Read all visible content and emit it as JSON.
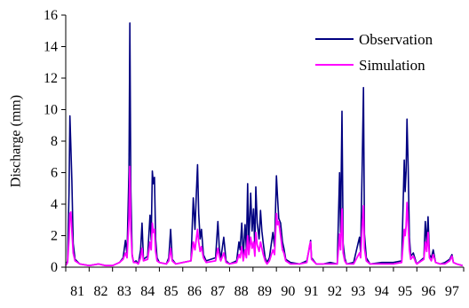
{
  "chart_data": {
    "type": "line",
    "title": "",
    "xlabel": "",
    "ylabel": "Discharge (mm)",
    "ylim": [
      0,
      16
    ],
    "xlim": [
      81,
      98
    ],
    "yticks": [
      "0",
      "2",
      "4",
      "6",
      "8",
      "10",
      "12",
      "14",
      "16"
    ],
    "xticks": [
      "81",
      "82",
      "83",
      "84",
      "85",
      "86",
      "87",
      "88",
      "89",
      "90",
      "91",
      "92",
      "93",
      "94",
      "95",
      "96",
      "97"
    ],
    "grid": false,
    "legend_position": "top-right",
    "series": [
      {
        "name": "Observation",
        "color": "#000080",
        "points": [
          [
            81.0,
            0.1
          ],
          [
            81.08,
            0.4
          ],
          [
            81.14,
            4.7
          ],
          [
            81.18,
            9.6
          ],
          [
            81.22,
            7.6
          ],
          [
            81.26,
            5.5
          ],
          [
            81.32,
            1.5
          ],
          [
            81.4,
            0.5
          ],
          [
            81.6,
            0.2
          ],
          [
            82.0,
            0.1
          ],
          [
            82.4,
            0.2
          ],
          [
            82.7,
            0.1
          ],
          [
            83.0,
            0.1
          ],
          [
            83.3,
            0.3
          ],
          [
            83.45,
            0.6
          ],
          [
            83.55,
            1.7
          ],
          [
            83.62,
            0.8
          ],
          [
            83.7,
            6.1
          ],
          [
            83.74,
            15.5
          ],
          [
            83.78,
            4.9
          ],
          [
            83.84,
            0.8
          ],
          [
            83.9,
            0.3
          ],
          [
            84.0,
            0.4
          ],
          [
            84.1,
            0.2
          ],
          [
            84.2,
            1.1
          ],
          [
            84.26,
            2.8
          ],
          [
            84.32,
            0.5
          ],
          [
            84.5,
            0.7
          ],
          [
            84.6,
            3.3
          ],
          [
            84.65,
            1.7
          ],
          [
            84.7,
            6.1
          ],
          [
            84.74,
            5.3
          ],
          [
            84.79,
            5.7
          ],
          [
            84.84,
            1.8
          ],
          [
            84.9,
            0.6
          ],
          [
            85.0,
            0.3
          ],
          [
            85.3,
            0.2
          ],
          [
            85.4,
            0.6
          ],
          [
            85.48,
            2.4
          ],
          [
            85.55,
            0.5
          ],
          [
            85.7,
            0.2
          ],
          [
            86.0,
            0.3
          ],
          [
            86.35,
            0.4
          ],
          [
            86.45,
            4.4
          ],
          [
            86.52,
            2.4
          ],
          [
            86.58,
            4.6
          ],
          [
            86.63,
            6.5
          ],
          [
            86.68,
            3.4
          ],
          [
            86.74,
            1.8
          ],
          [
            86.8,
            2.4
          ],
          [
            86.88,
            0.8
          ],
          [
            87.0,
            0.4
          ],
          [
            87.4,
            0.6
          ],
          [
            87.5,
            2.9
          ],
          [
            87.56,
            1.2
          ],
          [
            87.62,
            0.5
          ],
          [
            87.75,
            1.9
          ],
          [
            87.85,
            0.4
          ],
          [
            88.0,
            0.2
          ],
          [
            88.3,
            0.4
          ],
          [
            88.4,
            1.6
          ],
          [
            88.45,
            1.1
          ],
          [
            88.52,
            2.8
          ],
          [
            88.58,
            0.6
          ],
          [
            88.66,
            2.7
          ],
          [
            88.72,
            1.1
          ],
          [
            88.77,
            5.3
          ],
          [
            88.82,
            1.4
          ],
          [
            88.9,
            4.7
          ],
          [
            88.96,
            2.3
          ],
          [
            89.02,
            3.7
          ],
          [
            89.08,
            1.2
          ],
          [
            89.12,
            5.1
          ],
          [
            89.18,
            2.8
          ],
          [
            89.26,
            1.8
          ],
          [
            89.32,
            3.6
          ],
          [
            89.38,
            2.3
          ],
          [
            89.44,
            1.5
          ],
          [
            89.52,
            0.6
          ],
          [
            89.6,
            0.3
          ],
          [
            89.7,
            0.6
          ],
          [
            89.85,
            2.2
          ],
          [
            89.92,
            1.3
          ],
          [
            90.0,
            5.8
          ],
          [
            90.05,
            4.4
          ],
          [
            90.1,
            3.1
          ],
          [
            90.18,
            2.8
          ],
          [
            90.26,
            1.6
          ],
          [
            90.32,
            1.2
          ],
          [
            90.4,
            0.5
          ],
          [
            90.6,
            0.3
          ],
          [
            91.0,
            0.2
          ],
          [
            91.3,
            0.4
          ],
          [
            91.42,
            1.3
          ],
          [
            91.46,
            1.7
          ],
          [
            91.5,
            0.6
          ],
          [
            91.7,
            0.2
          ],
          [
            92.0,
            0.2
          ],
          [
            92.3,
            0.3
          ],
          [
            92.6,
            0.2
          ],
          [
            92.7,
            6.0
          ],
          [
            92.74,
            2.2
          ],
          [
            92.8,
            9.9
          ],
          [
            92.85,
            1.5
          ],
          [
            92.92,
            0.6
          ],
          [
            93.0,
            0.2
          ],
          [
            93.3,
            0.3
          ],
          [
            93.55,
            1.9
          ],
          [
            93.6,
            0.9
          ],
          [
            93.67,
            6.9
          ],
          [
            93.72,
            11.4
          ],
          [
            93.76,
            2.1
          ],
          [
            93.84,
            0.6
          ],
          [
            94.0,
            0.2
          ],
          [
            94.5,
            0.3
          ],
          [
            95.0,
            0.3
          ],
          [
            95.35,
            0.4
          ],
          [
            95.46,
            6.8
          ],
          [
            95.5,
            4.8
          ],
          [
            95.54,
            6.1
          ],
          [
            95.58,
            9.4
          ],
          [
            95.63,
            6.4
          ],
          [
            95.68,
            1.9
          ],
          [
            95.74,
            0.7
          ],
          [
            95.85,
            0.9
          ],
          [
            95.95,
            0.4
          ],
          [
            96.0,
            0.2
          ],
          [
            96.3,
            0.6
          ],
          [
            96.36,
            2.9
          ],
          [
            96.42,
            1.5
          ],
          [
            96.48,
            3.2
          ],
          [
            96.54,
            0.8
          ],
          [
            96.62,
            0.6
          ],
          [
            96.7,
            1.1
          ],
          [
            96.8,
            0.3
          ],
          [
            97.0,
            0.2
          ],
          [
            97.2,
            0.3
          ],
          [
            97.4,
            0.5
          ],
          [
            97.5,
            0.8
          ],
          [
            97.56,
            0.3
          ],
          [
            97.7,
            0.2
          ],
          [
            97.95,
            0.1
          ]
        ]
      },
      {
        "name": "Simulation",
        "color": "#ff00ff",
        "points": [
          [
            81.0,
            0.1
          ],
          [
            81.08,
            0.3
          ],
          [
            81.14,
            1.8
          ],
          [
            81.18,
            3.4
          ],
          [
            81.22,
            3.5
          ],
          [
            81.26,
            2.3
          ],
          [
            81.32,
            0.9
          ],
          [
            81.4,
            0.4
          ],
          [
            81.6,
            0.2
          ],
          [
            82.0,
            0.1
          ],
          [
            82.4,
            0.2
          ],
          [
            82.7,
            0.1
          ],
          [
            83.0,
            0.1
          ],
          [
            83.3,
            0.3
          ],
          [
            83.45,
            0.5
          ],
          [
            83.55,
            0.9
          ],
          [
            83.62,
            0.6
          ],
          [
            83.7,
            3.1
          ],
          [
            83.74,
            6.4
          ],
          [
            83.78,
            2.4
          ],
          [
            83.84,
            0.7
          ],
          [
            83.9,
            0.3
          ],
          [
            84.0,
            0.3
          ],
          [
            84.1,
            0.2
          ],
          [
            84.2,
            0.6
          ],
          [
            84.26,
            1.2
          ],
          [
            84.32,
            0.4
          ],
          [
            84.5,
            0.5
          ],
          [
            84.6,
            1.6
          ],
          [
            84.65,
            1.1
          ],
          [
            84.7,
            2.8
          ],
          [
            84.74,
            2.2
          ],
          [
            84.79,
            2.4
          ],
          [
            84.84,
            1.0
          ],
          [
            84.9,
            0.4
          ],
          [
            85.0,
            0.3
          ],
          [
            85.3,
            0.2
          ],
          [
            85.4,
            0.4
          ],
          [
            85.48,
            1.2
          ],
          [
            85.55,
            0.4
          ],
          [
            85.7,
            0.2
          ],
          [
            86.0,
            0.3
          ],
          [
            86.35,
            0.4
          ],
          [
            86.45,
            1.6
          ],
          [
            86.52,
            1.1
          ],
          [
            86.58,
            1.8
          ],
          [
            86.63,
            2.4
          ],
          [
            86.68,
            1.6
          ],
          [
            86.74,
            1.0
          ],
          [
            86.8,
            1.3
          ],
          [
            86.88,
            0.6
          ],
          [
            87.0,
            0.3
          ],
          [
            87.4,
            0.4
          ],
          [
            87.5,
            1.2
          ],
          [
            87.56,
            0.7
          ],
          [
            87.62,
            0.4
          ],
          [
            87.75,
            0.9
          ],
          [
            87.85,
            0.3
          ],
          [
            88.0,
            0.2
          ],
          [
            88.3,
            0.3
          ],
          [
            88.4,
            0.8
          ],
          [
            88.45,
            0.6
          ],
          [
            88.52,
            1.3
          ],
          [
            88.58,
            0.4
          ],
          [
            88.66,
            1.1
          ],
          [
            88.72,
            0.6
          ],
          [
            88.77,
            2.0
          ],
          [
            88.82,
            0.8
          ],
          [
            88.9,
            1.9
          ],
          [
            88.96,
            1.2
          ],
          [
            89.02,
            1.6
          ],
          [
            89.08,
            0.7
          ],
          [
            89.12,
            2.2
          ],
          [
            89.18,
            1.4
          ],
          [
            89.26,
            1.0
          ],
          [
            89.32,
            1.6
          ],
          [
            89.38,
            1.2
          ],
          [
            89.44,
            0.8
          ],
          [
            89.52,
            0.4
          ],
          [
            89.6,
            0.2
          ],
          [
            89.7,
            0.4
          ],
          [
            89.85,
            1.1
          ],
          [
            89.92,
            0.8
          ],
          [
            90.0,
            3.4
          ],
          [
            90.05,
            2.7
          ],
          [
            90.1,
            2.9
          ],
          [
            90.18,
            2.0
          ],
          [
            90.26,
            1.1
          ],
          [
            90.32,
            0.9
          ],
          [
            90.4,
            0.4
          ],
          [
            90.6,
            0.2
          ],
          [
            91.0,
            0.2
          ],
          [
            91.3,
            0.3
          ],
          [
            91.42,
            1.4
          ],
          [
            91.46,
            1.6
          ],
          [
            91.5,
            0.5
          ],
          [
            91.7,
            0.2
          ],
          [
            92.0,
            0.2
          ],
          [
            92.3,
            0.2
          ],
          [
            92.6,
            0.2
          ],
          [
            92.7,
            2.1
          ],
          [
            92.74,
            1.1
          ],
          [
            92.8,
            3.7
          ],
          [
            92.85,
            0.9
          ],
          [
            92.92,
            0.4
          ],
          [
            93.0,
            0.2
          ],
          [
            93.3,
            0.2
          ],
          [
            93.55,
            0.9
          ],
          [
            93.6,
            0.6
          ],
          [
            93.67,
            2.7
          ],
          [
            93.72,
            3.9
          ],
          [
            93.76,
            1.2
          ],
          [
            93.84,
            0.4
          ],
          [
            94.0,
            0.2
          ],
          [
            94.5,
            0.2
          ],
          [
            95.0,
            0.2
          ],
          [
            95.35,
            0.3
          ],
          [
            95.46,
            2.4
          ],
          [
            95.5,
            2.0
          ],
          [
            95.54,
            2.6
          ],
          [
            95.58,
            4.1
          ],
          [
            95.63,
            2.8
          ],
          [
            95.68,
            1.1
          ],
          [
            95.74,
            0.5
          ],
          [
            95.85,
            0.7
          ],
          [
            95.95,
            0.3
          ],
          [
            96.0,
            0.2
          ],
          [
            96.3,
            0.5
          ],
          [
            96.36,
            1.6
          ],
          [
            96.42,
            1.0
          ],
          [
            96.48,
            2.2
          ],
          [
            96.54,
            0.6
          ],
          [
            96.62,
            0.4
          ],
          [
            96.7,
            0.8
          ],
          [
            96.8,
            0.3
          ],
          [
            97.0,
            0.2
          ],
          [
            97.2,
            0.2
          ],
          [
            97.4,
            0.4
          ],
          [
            97.5,
            0.7
          ],
          [
            97.56,
            0.3
          ],
          [
            97.7,
            0.2
          ],
          [
            97.95,
            0.1
          ]
        ]
      }
    ]
  }
}
